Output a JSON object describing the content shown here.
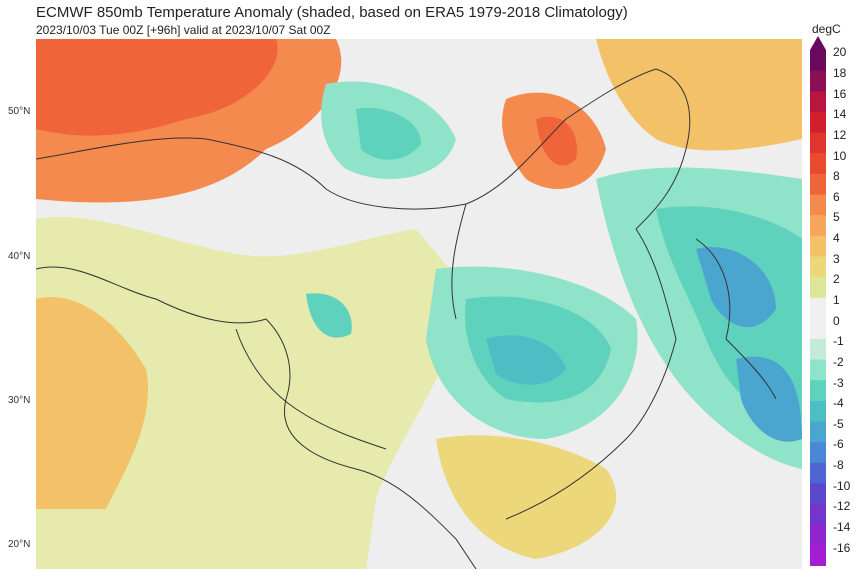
{
  "title": "ECMWF 850mb Temperature Anomaly (shaded, based on ERA5 1979-2018 Climatology)",
  "subtitle": "2023/10/03 Tue 00Z [+96h] valid at 2023/10/07 Sat 00Z",
  "lat_labels": [
    "50°N",
    "40°N",
    "30°N",
    "20°N"
  ],
  "colorbar": {
    "unit": "degC",
    "ticks": [
      "20",
      "18",
      "16",
      "14",
      "12",
      "10",
      "8",
      "6",
      "5",
      "4",
      "3",
      "2",
      "1",
      "0",
      "-1",
      "-2",
      "-3",
      "-4",
      "-5",
      "-6",
      "-8",
      "-10",
      "-12",
      "-14",
      "-16"
    ],
    "colors": [
      "#6a0a5e",
      "#8c0f55",
      "#b8163e",
      "#d1202b",
      "#e0352b",
      "#ea4b2e",
      "#f0643a",
      "#f58a4e",
      "#f6a65a",
      "#f3c167",
      "#ecd77b",
      "#dde598",
      "#f0f0f0",
      "#f0f0f0",
      "#c2ecd9",
      "#8fe3c8",
      "#5ed2bc",
      "#4dbfc4",
      "#4aa6cf",
      "#4a88d6",
      "#4f65d2",
      "#5c48cc",
      "#7335cb",
      "#8f25cf",
      "#a41dd4"
    ]
  },
  "colors": {
    "background": "#f3f3f3",
    "warm_strong": "#f0643a",
    "warm": "#f58a4e",
    "warm_light": "#f3c167",
    "neutral_warm": "#dde598",
    "cool_light": "#8fe3c8",
    "cool": "#4dbfc4",
    "cool_strong": "#4a88d6",
    "borders": "#333333"
  }
}
